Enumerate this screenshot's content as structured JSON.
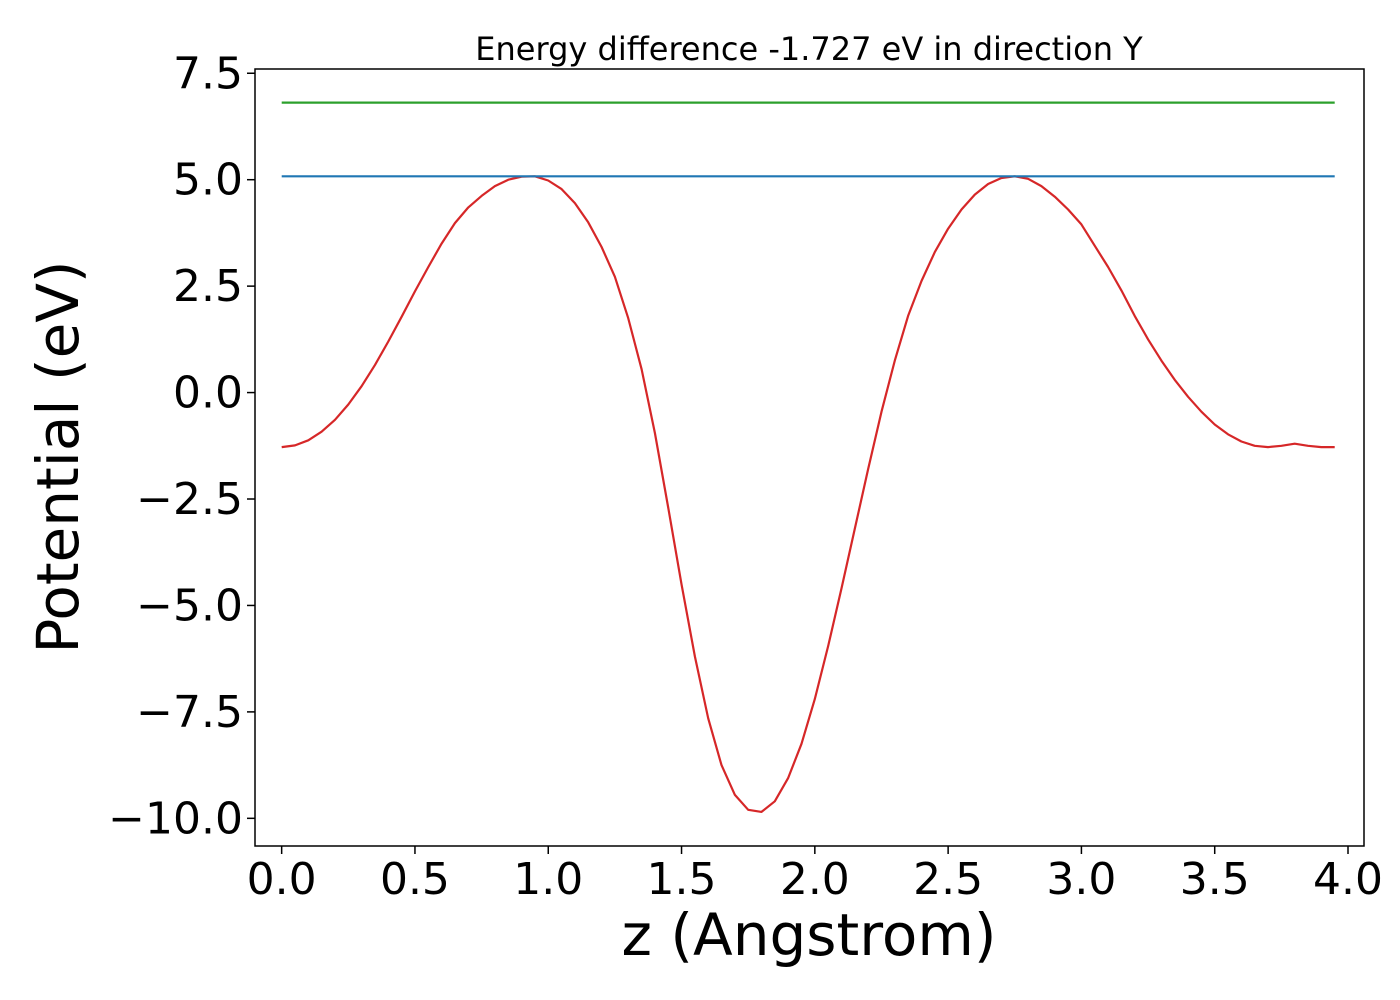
{
  "chart_data": {
    "type": "line",
    "title": "Energy difference -1.727 eV in direction Y",
    "xlabel": "z (Angstrom)",
    "ylabel": "Potential (eV)",
    "xlim": [
      -0.1,
      4.06
    ],
    "ylim": [
      -10.65,
      7.6
    ],
    "xticks": [
      0.0,
      0.5,
      1.0,
      1.5,
      2.0,
      2.5,
      3.0,
      3.5,
      4.0
    ],
    "xtick_labels": [
      "0.0",
      "0.5",
      "1.0",
      "1.5",
      "2.0",
      "2.5",
      "3.0",
      "3.5",
      "4.0"
    ],
    "yticks": [
      7.5,
      5.0,
      2.5,
      0.0,
      -2.5,
      -5.0,
      -7.5,
      -10.0
    ],
    "ytick_labels": [
      "7.5",
      "5.0",
      "2.5",
      "0.0",
      "−2.5",
      "−5.0",
      "−7.5",
      "−10.0"
    ],
    "grid": false,
    "series": [
      {
        "color": "#d62728",
        "x": [
          0.0,
          0.05,
          0.1,
          0.15,
          0.2,
          0.25,
          0.3,
          0.35,
          0.4,
          0.45,
          0.5,
          0.55,
          0.6,
          0.65,
          0.7,
          0.75,
          0.8,
          0.85,
          0.9,
          0.95,
          1.0,
          1.05,
          1.1,
          1.15,
          1.2,
          1.25,
          1.3,
          1.35,
          1.4,
          1.45,
          1.5,
          1.55,
          1.6,
          1.65,
          1.7,
          1.75,
          1.8,
          1.85,
          1.9,
          1.95,
          2.0,
          2.05,
          2.1,
          2.15,
          2.2,
          2.25,
          2.3,
          2.35,
          2.4,
          2.45,
          2.5,
          2.55,
          2.6,
          2.65,
          2.7,
          2.75,
          2.8,
          2.85,
          2.9,
          2.95,
          3.0,
          3.05,
          3.1,
          3.15,
          3.2,
          3.25,
          3.3,
          3.35,
          3.4,
          3.45,
          3.5,
          3.55,
          3.6,
          3.65,
          3.7,
          3.75,
          3.8,
          3.85,
          3.9,
          3.95
        ],
        "y": [
          -1.28,
          -1.24,
          -1.12,
          -0.92,
          -0.64,
          -0.28,
          0.15,
          0.65,
          1.2,
          1.78,
          2.38,
          2.95,
          3.5,
          3.98,
          4.35,
          4.62,
          4.85,
          5.0,
          5.07,
          5.08,
          4.98,
          4.78,
          4.45,
          4.0,
          3.42,
          2.72,
          1.75,
          0.55,
          -0.95,
          -2.7,
          -4.5,
          -6.2,
          -7.65,
          -8.75,
          -9.45,
          -9.8,
          -9.85,
          -9.6,
          -9.05,
          -8.25,
          -7.2,
          -5.95,
          -4.6,
          -3.2,
          -1.8,
          -0.45,
          0.75,
          1.8,
          2.62,
          3.3,
          3.85,
          4.3,
          4.65,
          4.9,
          5.04,
          5.08,
          5.02,
          4.85,
          4.6,
          4.3,
          3.95,
          3.45,
          2.95,
          2.4,
          1.8,
          1.25,
          0.75,
          0.3,
          -0.1,
          -0.45,
          -0.75,
          -0.98,
          -1.15,
          -1.25,
          -1.28,
          -1.25,
          -1.2,
          -1.25,
          -1.28,
          -1.28
        ]
      },
      {
        "color": "#1f77b4",
        "x": [
          0.0,
          3.95
        ],
        "y": [
          5.08,
          5.08
        ]
      },
      {
        "color": "#2ca02c",
        "x": [
          0.0,
          3.95
        ],
        "y": [
          6.81,
          6.81
        ]
      }
    ]
  }
}
